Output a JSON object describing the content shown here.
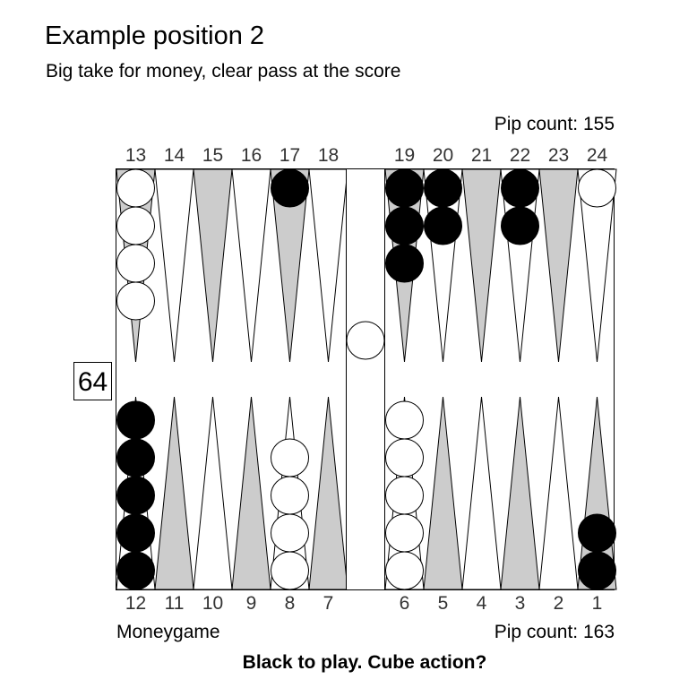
{
  "title": "Example position 2",
  "subtitle": "Big take for money, clear pass at the score",
  "pip_top": "Pip count: 155",
  "pip_bottom": "Pip count: 163",
  "match": "Moneygame",
  "prompt": "Black to play. Cube action?",
  "cube_value": "64",
  "points_top": [
    "13",
    "14",
    "15",
    "16",
    "17",
    "18",
    "19",
    "20",
    "21",
    "22",
    "23",
    "24"
  ],
  "points_bottom": [
    "12",
    "11",
    "10",
    "9",
    "8",
    "7",
    "6",
    "5",
    "4",
    "3",
    "2",
    "1"
  ],
  "colors": {
    "white_checker": "#ffffff",
    "black_checker": "#000000",
    "shaded_point": "#cccccc",
    "plain_point": "#ffffff",
    "line": "#000000"
  },
  "checkers": [
    {
      "point": 13,
      "color": "white",
      "count": 4
    },
    {
      "point": 17,
      "color": "black",
      "count": 1
    },
    {
      "point": 19,
      "color": "black",
      "count": 3
    },
    {
      "point": 20,
      "color": "black",
      "count": 2
    },
    {
      "point": 22,
      "color": "black",
      "count": 2
    },
    {
      "point": 24,
      "color": "white",
      "count": 1
    },
    {
      "point": 12,
      "color": "black",
      "count": 5
    },
    {
      "point": 8,
      "color": "white",
      "count": 4
    },
    {
      "point": 6,
      "color": "white",
      "count": 5
    },
    {
      "point": 1,
      "color": "black",
      "count": 2
    }
  ],
  "bar": [
    {
      "color": "white",
      "count": 1
    }
  ]
}
